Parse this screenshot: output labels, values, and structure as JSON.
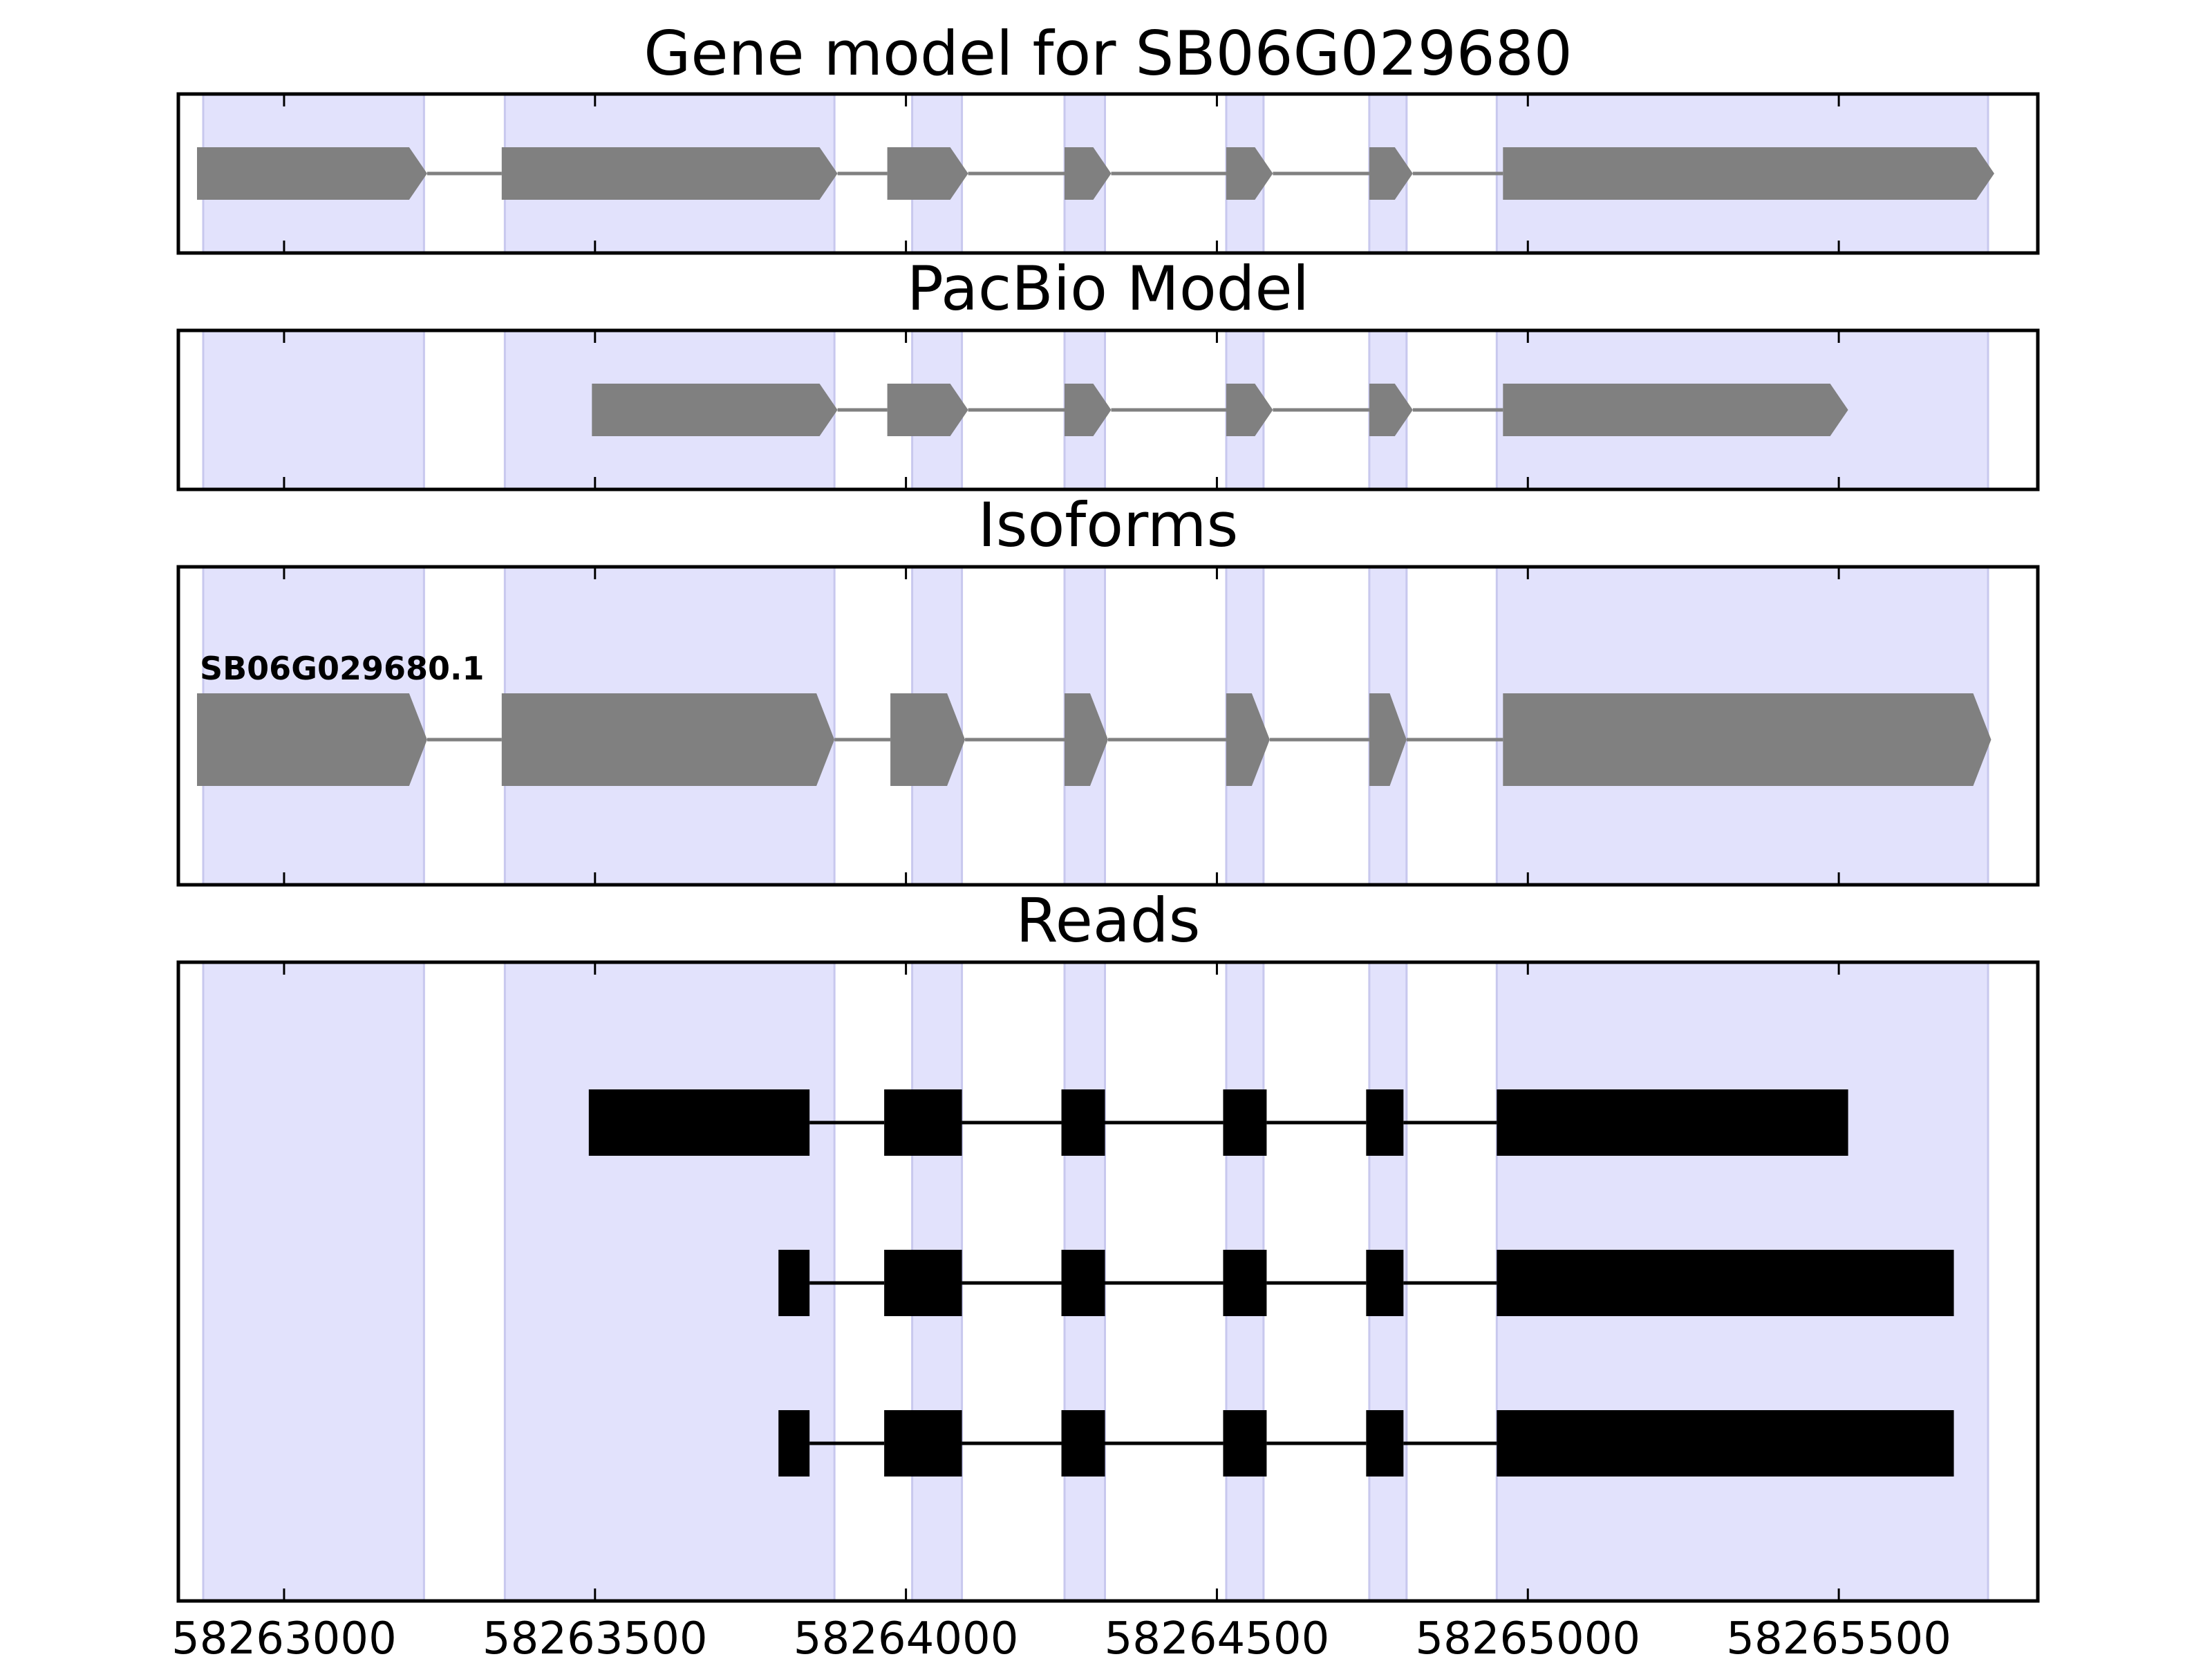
{
  "chart_data": {
    "type": "gene-track",
    "x_range": [
      58262830,
      58265820
    ],
    "x_ticks": [
      58263000,
      58263500,
      58264000,
      58264500,
      58265000,
      58265500
    ],
    "x_tick_labels": [
      "58263000",
      "58263500",
      "58264000",
      "58264500",
      "58265000",
      "58265500"
    ],
    "colors": {
      "shade": "#e2e2fc",
      "shade_edge": "#c8c8ee",
      "model_fill": "#808080",
      "intron_line": "#808080",
      "read_fill": "#000000",
      "frame": "#000000"
    },
    "shaded_regions": [
      [
        58262870,
        58263225
      ],
      [
        58263355,
        58263885
      ],
      [
        58264010,
        58264090
      ],
      [
        58264255,
        58264320
      ],
      [
        58264515,
        58264575
      ],
      [
        58264745,
        58264805
      ],
      [
        58264950,
        58265740
      ]
    ],
    "panels": [
      {
        "title": "Gene model for SB06G029680",
        "kind": "model",
        "tracks": [
          {
            "label": "",
            "exons": [
              [
                58262860,
                58263230
              ],
              [
                58263350,
                58263890
              ],
              [
                58263970,
                58264100
              ],
              [
                58264255,
                58264330
              ],
              [
                58264515,
                58264590
              ],
              [
                58264745,
                58264815
              ],
              [
                58264960,
                58265750
              ]
            ]
          }
        ]
      },
      {
        "title": "PacBio Model",
        "kind": "model",
        "tracks": [
          {
            "label": "",
            "exons": [
              [
                58263495,
                58263890
              ],
              [
                58263970,
                58264100
              ],
              [
                58264255,
                58264330
              ],
              [
                58264515,
                58264590
              ],
              [
                58264745,
                58264815
              ],
              [
                58264960,
                58265515
              ]
            ]
          }
        ]
      },
      {
        "title": "Isoforms",
        "kind": "model",
        "tracks": [
          {
            "label": "SB06G029680.1",
            "exons": [
              [
                58262860,
                58263230
              ],
              [
                58263350,
                58263885
              ],
              [
                58263975,
                58264095
              ],
              [
                58264255,
                58264325
              ],
              [
                58264515,
                58264585
              ],
              [
                58264745,
                58264805
              ],
              [
                58264960,
                58265745
              ]
            ]
          }
        ]
      },
      {
        "title": "Reads",
        "kind": "reads",
        "tracks": [
          {
            "label": "",
            "exons": [
              [
                58263490,
                58263845
              ],
              [
                58263965,
                58264090
              ],
              [
                58264250,
                58264320
              ],
              [
                58264510,
                58264580
              ],
              [
                58264740,
                58264800
              ],
              [
                58264950,
                58265515
              ]
            ]
          },
          {
            "label": "",
            "exons": [
              [
                58263795,
                58263845
              ],
              [
                58263965,
                58264090
              ],
              [
                58264250,
                58264320
              ],
              [
                58264510,
                58264580
              ],
              [
                58264740,
                58264800
              ],
              [
                58264950,
                58265685
              ]
            ]
          },
          {
            "label": "",
            "exons": [
              [
                58263795,
                58263845
              ],
              [
                58263965,
                58264090
              ],
              [
                58264250,
                58264320
              ],
              [
                58264510,
                58264580
              ],
              [
                58264740,
                58264800
              ],
              [
                58264950,
                58265685
              ]
            ]
          }
        ]
      }
    ]
  }
}
